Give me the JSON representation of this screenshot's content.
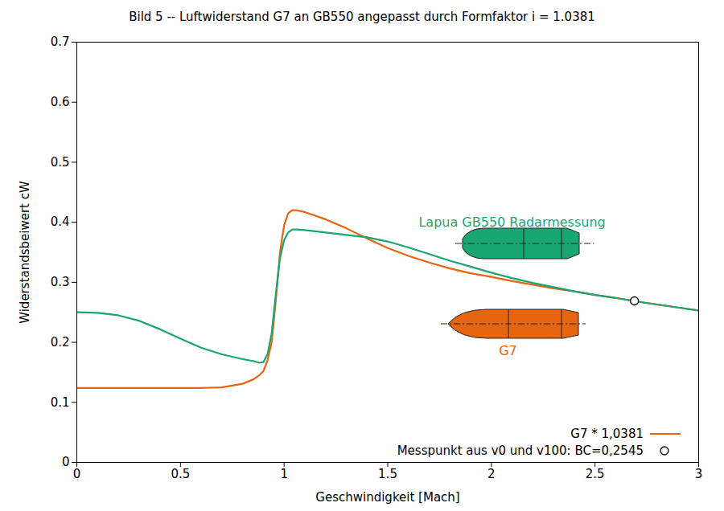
{
  "chart_data": {
    "type": "line",
    "title": "Bild 5 -- Luftwiderstand G7 an GB550 angepasst durch Formfaktor i = 1.0381",
    "x_label": "Geschwindigkeit [Mach]",
    "y_label": "Widerstandsbeiwert cW",
    "x": [
      0,
      0.1,
      0.2,
      0.3,
      0.4,
      0.5,
      0.6,
      0.7,
      0.8,
      0.85,
      0.88,
      0.9,
      0.92,
      0.94,
      0.96,
      0.98,
      1.0,
      1.02,
      1.04,
      1.06,
      1.1,
      1.2,
      1.3,
      1.4,
      1.5,
      1.6,
      1.7,
      1.8,
      1.9,
      2.0,
      2.1,
      2.2,
      2.3,
      2.4,
      2.5,
      2.6,
      2.7,
      2.8,
      2.9,
      3.0
    ],
    "series": [
      {
        "name": "G7 * 1,0381",
        "color": "#e8650f",
        "type": "line",
        "values": [
          0.124,
          0.124,
          0.124,
          0.124,
          0.124,
          0.124,
          0.124,
          0.125,
          0.131,
          0.138,
          0.145,
          0.152,
          0.17,
          0.2,
          0.27,
          0.35,
          0.395,
          0.415,
          0.42,
          0.42,
          0.417,
          0.405,
          0.39,
          0.373,
          0.357,
          0.344,
          0.333,
          0.323,
          0.315,
          0.309,
          0.302,
          0.296,
          0.29,
          0.285,
          0.279,
          0.274,
          0.268,
          0.263,
          0.258,
          0.253
        ]
      },
      {
        "name": "Lapua GB550 Radarmessung",
        "color": "#1aa672",
        "type": "line",
        "values": [
          0.25,
          0.249,
          0.245,
          0.236,
          0.222,
          0.206,
          0.191,
          0.18,
          0.172,
          0.169,
          0.166,
          0.167,
          0.18,
          0.215,
          0.28,
          0.34,
          0.37,
          0.383,
          0.388,
          0.388,
          0.387,
          0.383,
          0.379,
          0.375,
          0.368,
          0.358,
          0.347,
          0.336,
          0.326,
          0.316,
          0.307,
          0.299,
          0.292,
          0.285,
          0.279,
          0.274,
          0.268,
          0.263,
          0.258,
          0.253
        ]
      },
      {
        "name": "Messpunkt aus v0 und v100: BC=0,2545",
        "color": "#000000",
        "type": "scatter",
        "marker": "circle",
        "x": [
          2.69
        ],
        "values": [
          0.269
        ]
      }
    ],
    "annotations": [
      {
        "text": "Lapua GB550 Radarmessung",
        "x": 2.1,
        "y": 0.4,
        "color": "#1aa672"
      },
      {
        "text": "G7",
        "x": 2.08,
        "y": 0.185,
        "color": "#e8650f"
      }
    ],
    "xlim": [
      0,
      3
    ],
    "ylim": [
      0,
      0.7
    ],
    "xticks": [
      0,
      0.5,
      1,
      1.5,
      2,
      2.5,
      3
    ],
    "yticks": [
      0,
      0.1,
      0.2,
      0.3,
      0.4,
      0.5,
      0.6,
      0.7
    ],
    "grid": false,
    "legend": "bottom-right"
  }
}
